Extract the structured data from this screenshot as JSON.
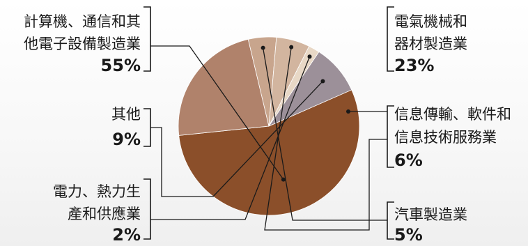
{
  "chart_data": {
    "type": "pie",
    "slices": [
      {
        "label_lines": [
          "計算機、通信和其",
          "他電子設備製造業"
        ],
        "value": 55,
        "value_label": "55%",
        "color": "#8b4f2a"
      },
      {
        "label_lines": [
          "電氣機械和",
          "器材製造業"
        ],
        "value": 23,
        "value_label": "23%",
        "color": "#b0826b"
      },
      {
        "label_lines": [
          "汽車製造業"
        ],
        "value": 5,
        "value_label": "5%",
        "color": "#c8a58d"
      },
      {
        "label_lines": [
          "信息傳輸、軟件和",
          "信息技術服務業"
        ],
        "value": 6,
        "value_label": "6%",
        "color": "#d2b59f"
      },
      {
        "label_lines": [
          "電力、熱力生",
          "產和供應業"
        ],
        "value": 2,
        "value_label": "2%",
        "color": "#e8d8c6"
      },
      {
        "label_lines": [
          "其他"
        ],
        "value": 9,
        "value_label": "9%",
        "color": "#9c9099"
      }
    ],
    "start_angle_deg": 24,
    "direction": "clockwise",
    "legend": "none"
  }
}
